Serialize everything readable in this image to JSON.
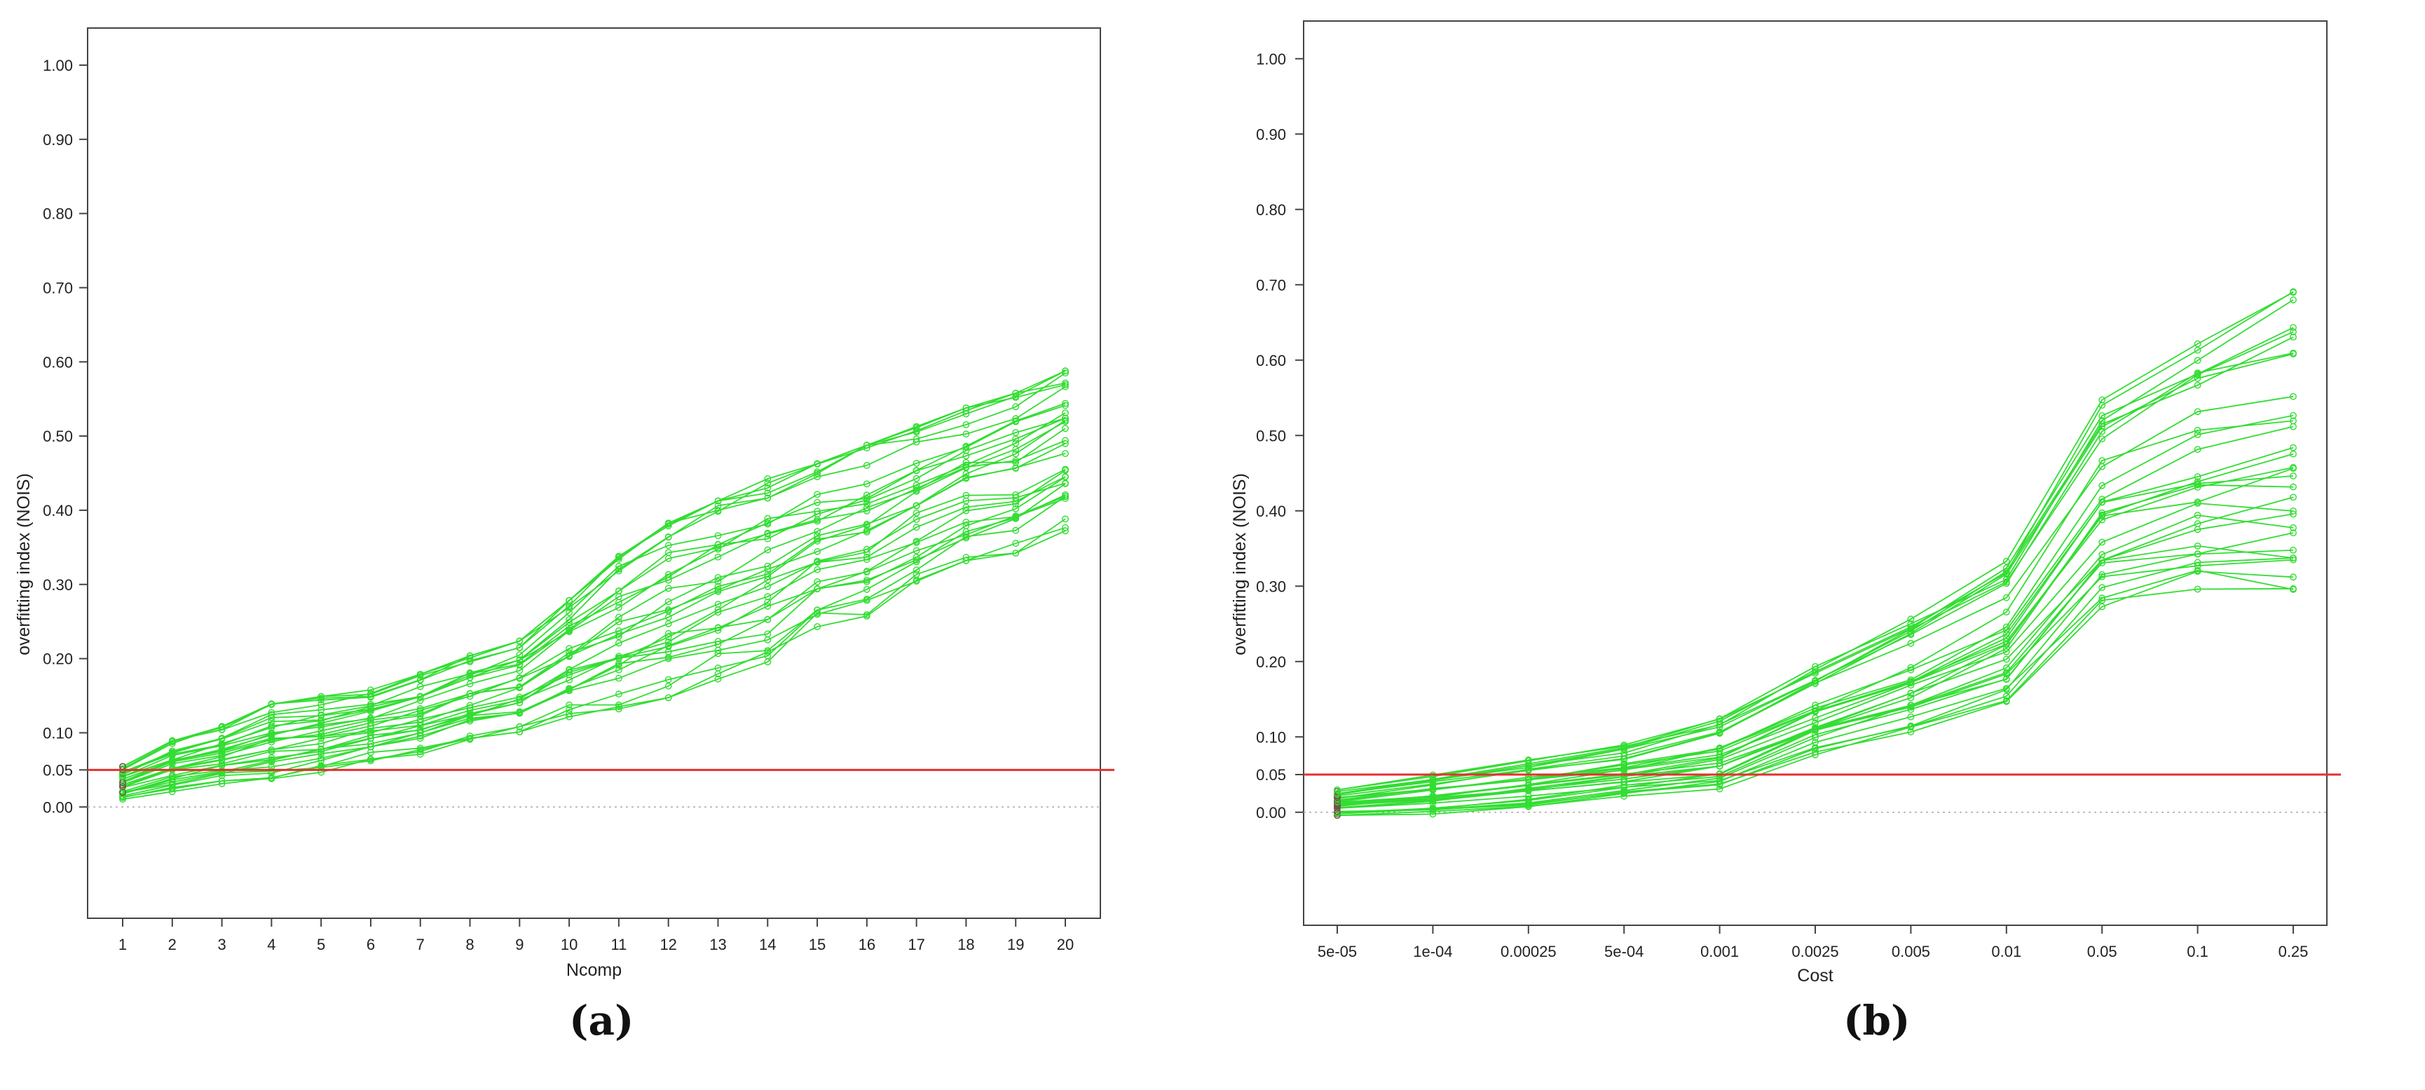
{
  "chart_data": [
    {
      "id": "a",
      "type": "line",
      "caption": "(a)",
      "xlabel": "Ncomp",
      "ylabel": "overfitting index (NOIS)",
      "categories": [
        "1",
        "2",
        "3",
        "4",
        "5",
        "6",
        "7",
        "8",
        "9",
        "10",
        "11",
        "12",
        "13",
        "14",
        "15",
        "16",
        "17",
        "18",
        "19",
        "20"
      ],
      "y_ticks": [
        0.0,
        0.05,
        0.1,
        0.2,
        0.3,
        0.4,
        0.5,
        0.6,
        0.7,
        0.8,
        0.9,
        1.0
      ],
      "y_tick_labels": [
        "0.00",
        "0.05",
        "0.10",
        "0.20",
        "0.30",
        "0.40",
        "0.50",
        "0.60",
        "0.70",
        "0.80",
        "0.90",
        "1.00"
      ],
      "ylim": [
        -0.15,
        1.05
      ],
      "threshold": 0.05,
      "threshold_color": "#e53030",
      "series_color": "#33dd33",
      "series_count": 30,
      "envelope": {
        "low": [
          0.01,
          0.02,
          0.03,
          0.035,
          0.045,
          0.06,
          0.07,
          0.09,
          0.1,
          0.12,
          0.13,
          0.145,
          0.17,
          0.19,
          0.24,
          0.255,
          0.3,
          0.33,
          0.34,
          0.37
        ],
        "high": [
          0.055,
          0.09,
          0.11,
          0.14,
          0.15,
          0.16,
          0.18,
          0.205,
          0.225,
          0.28,
          0.34,
          0.385,
          0.415,
          0.445,
          0.465,
          0.49,
          0.515,
          0.54,
          0.56,
          0.59
        ]
      }
    },
    {
      "id": "b",
      "type": "line",
      "caption": "(b)",
      "xlabel": "Cost",
      "ylabel": "overfitting index (NOIS)",
      "categories": [
        "5e-05",
        "1e-04",
        "0.00025",
        "5e-04",
        "0.001",
        "0.0025",
        "0.005",
        "0.01",
        "0.05",
        "0.1",
        "0.25"
      ],
      "y_ticks": [
        0.0,
        0.05,
        0.1,
        0.2,
        0.3,
        0.4,
        0.5,
        0.6,
        0.7,
        0.8,
        0.9,
        1.0
      ],
      "y_tick_labels": [
        "0.00",
        "0.05",
        "0.10",
        "0.20",
        "0.30",
        "0.40",
        "0.50",
        "0.60",
        "0.70",
        "0.80",
        "0.90",
        "1.00"
      ],
      "ylim": [
        -0.15,
        1.05
      ],
      "threshold": 0.05,
      "threshold_color": "#e53030",
      "series_color": "#33dd33",
      "series_count": 30,
      "envelope": {
        "low": [
          -0.005,
          -0.003,
          0.005,
          0.02,
          0.03,
          0.075,
          0.105,
          0.145,
          0.27,
          0.29,
          0.275
        ],
        "high": [
          0.03,
          0.05,
          0.07,
          0.09,
          0.125,
          0.195,
          0.26,
          0.335,
          0.55,
          0.625,
          0.695
        ]
      }
    }
  ]
}
